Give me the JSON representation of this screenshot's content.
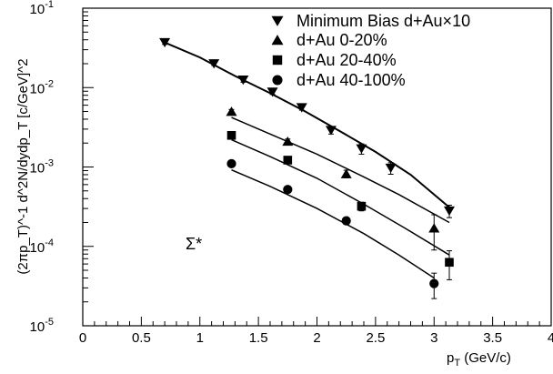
{
  "chart_data": {
    "type": "scatter",
    "title": "",
    "annotation": "Σ*",
    "xlabel": {
      "base": "p",
      "sub": "T",
      "unit": " (GeV/c)"
    },
    "ylabel": "(2πp_T)^-1 d^2N/dydp_T [c/GeV]^2",
    "xlim": [
      0,
      4
    ],
    "ylim": [
      1e-05,
      0.1
    ],
    "ylog": true,
    "grid": false,
    "legend_position": "top-right",
    "x_ticks": [
      "0",
      "0.5",
      "1",
      "1.5",
      "2",
      "2.5",
      "3",
      "3.5",
      "4"
    ],
    "y_ticks": [
      {
        "base": "10",
        "exp": "-5"
      },
      {
        "base": "10",
        "exp": "-4"
      },
      {
        "base": "10",
        "exp": "-3"
      },
      {
        "base": "10",
        "exp": "-2"
      },
      {
        "base": "10",
        "exp": "-1"
      }
    ],
    "series": [
      {
        "name": "Minimum Bias d+Au×10",
        "marker": "triangle-down",
        "points": [
          {
            "x": 0.7,
            "y": 0.037,
            "err": 0.002
          },
          {
            "x": 1.12,
            "y": 0.02,
            "err": 0.001
          },
          {
            "x": 1.37,
            "y": 0.0125,
            "err": 0.0008
          },
          {
            "x": 1.62,
            "y": 0.0088,
            "err": 0.0006
          },
          {
            "x": 1.87,
            "y": 0.0056,
            "err": 0.0004
          },
          {
            "x": 2.12,
            "y": 0.0029,
            "err": 0.0003
          },
          {
            "x": 2.38,
            "y": 0.0017,
            "err": 0.00025
          },
          {
            "x": 2.63,
            "y": 0.00097,
            "err": 0.00016
          },
          {
            "x": 3.13,
            "y": 0.00028,
            "err": 5e-05
          }
        ],
        "fit": [
          [
            0.7,
            0.037
          ],
          [
            1.0,
            0.024
          ],
          [
            1.3,
            0.014
          ],
          [
            1.6,
            0.0085
          ],
          [
            1.9,
            0.005
          ],
          [
            2.2,
            0.0028
          ],
          [
            2.5,
            0.00155
          ],
          [
            2.8,
            0.0008
          ],
          [
            3.13,
            0.00031
          ]
        ]
      },
      {
        "name": "d+Au 0-20%",
        "marker": "triangle-up",
        "points": [
          {
            "x": 1.27,
            "y": 0.005,
            "err": 0.0003
          },
          {
            "x": 1.75,
            "y": 0.0021,
            "err": 0.00015
          },
          {
            "x": 2.25,
            "y": 0.00082,
            "err": 9e-05
          },
          {
            "x": 3.0,
            "y": 0.00017,
            "err": 8e-05
          }
        ],
        "fit": [
          [
            1.27,
            0.0042
          ],
          [
            1.6,
            0.0026
          ],
          [
            2.0,
            0.00145
          ],
          [
            2.4,
            0.00075
          ],
          [
            2.7,
            0.00045
          ],
          [
            3.13,
            0.0002
          ]
        ]
      },
      {
        "name": "d+Au 20-40%",
        "marker": "square",
        "points": [
          {
            "x": 1.27,
            "y": 0.0025,
            "err": 0.00015
          },
          {
            "x": 1.75,
            "y": 0.00122,
            "err": 9e-05
          },
          {
            "x": 2.38,
            "y": 0.00032,
            "err": 4e-05
          },
          {
            "x": 3.13,
            "y": 6.3e-05,
            "err": 2.5e-05
          }
        ],
        "fit": [
          [
            1.27,
            0.0022
          ],
          [
            1.6,
            0.00135
          ],
          [
            2.0,
            0.00072
          ],
          [
            2.4,
            0.00034
          ],
          [
            2.75,
            0.00017
          ],
          [
            3.13,
            7.8e-05
          ]
        ]
      },
      {
        "name": "d+Au 40-100%",
        "marker": "circle",
        "points": [
          {
            "x": 1.27,
            "y": 0.0011,
            "err": 6e-05
          },
          {
            "x": 1.75,
            "y": 0.00052,
            "err": 4e-05
          },
          {
            "x": 2.25,
            "y": 0.00021,
            "err": 2e-05
          },
          {
            "x": 3.0,
            "y": 3.4e-05,
            "err": 1.2e-05
          }
        ],
        "fit": [
          [
            1.27,
            0.00092
          ],
          [
            1.6,
            0.00057
          ],
          [
            2.0,
            0.0003
          ],
          [
            2.4,
            0.000145
          ],
          [
            2.7,
            7.8e-05
          ],
          [
            3.0,
            4e-05
          ]
        ]
      }
    ]
  }
}
